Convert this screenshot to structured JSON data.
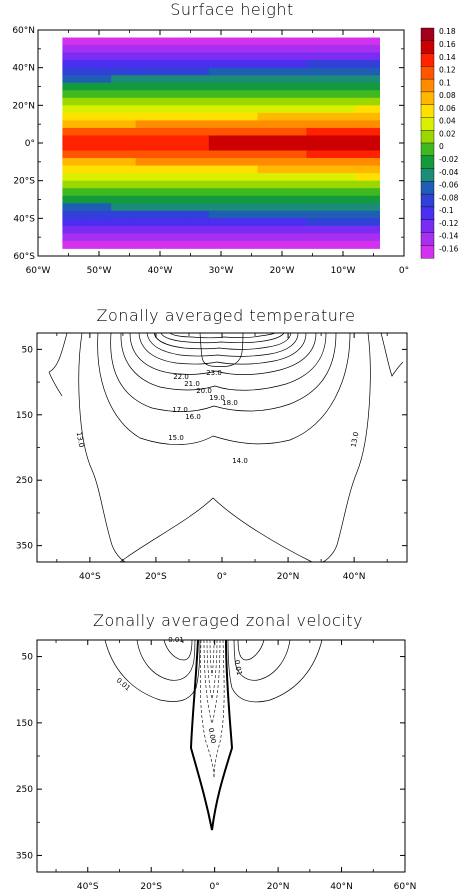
{
  "panels": [
    {
      "title": "Surface height",
      "type": "heatmap",
      "x_ticks": [
        "60°W",
        "50°W",
        "40°W",
        "30°W",
        "20°W",
        "10°W",
        "0°"
      ],
      "y_ticks": [
        "60°N",
        "40°N",
        "20°N",
        "0°",
        "20°S",
        "40°S",
        "60°S"
      ],
      "colorbar": [
        "0.18",
        "0.16",
        "0.14",
        "0.12",
        "0.1",
        "0.08",
        "0.06",
        "0.04",
        "0.02",
        "0",
        "-0.02",
        "-0.04",
        "-0.06",
        "-0.08",
        "-0.1",
        "-0.12",
        "-0.14",
        "-0.16"
      ],
      "colors": [
        "#a0001a",
        "#cc0000",
        "#ff2200",
        "#ff5500",
        "#ff8c00",
        "#ffb700",
        "#ffe000",
        "#d9f000",
        "#9ad800",
        "#40b820",
        "#129a3c",
        "#1a8c78",
        "#1f5eb4",
        "#3141d8",
        "#4a2ff0",
        "#7b2cf2",
        "#a730f0",
        "#d431ee"
      ],
      "xlim": [
        -60,
        0
      ],
      "ylim": [
        -60,
        60
      ],
      "lon_range": [
        -56,
        -4
      ],
      "lat_range": [
        -56,
        56
      ]
    },
    {
      "title": "Zonally averaged temperature",
      "type": "contour",
      "x_ticks": [
        "40°S",
        "20°S",
        "0°",
        "20°N",
        "40°N"
      ],
      "y_ticks": [
        "50",
        "150",
        "250",
        "350"
      ],
      "contour_labels": [
        "23.0",
        "22.0",
        "21.0",
        "20.0",
        "19.0",
        "18.0",
        "17.0",
        "16.0",
        "15.0",
        "14.0",
        "13.0",
        "13.0"
      ],
      "xlim": [
        -56,
        56
      ],
      "ylim": [
        375,
        25
      ]
    },
    {
      "title": "Zonally averaged zonal velocity",
      "type": "contour",
      "x_ticks": [
        "40°S",
        "20°S",
        "0°",
        "20°N",
        "40°N",
        "60°N"
      ],
      "y_ticks": [
        "50",
        "150",
        "250",
        "350"
      ],
      "contour_labels": [
        "0.01",
        "0.01",
        "0.01",
        "0.00"
      ],
      "xlim": [
        -56,
        60
      ],
      "ylim": [
        375,
        25
      ]
    }
  ],
  "chart_data": [
    {
      "type": "heatmap",
      "title": "Surface height",
      "x": [
        -54,
        -50,
        -46,
        -42,
        -38,
        -34,
        -30,
        -26,
        -22,
        -18,
        -14,
        -10,
        -6
      ],
      "y_lat_bands": [
        54,
        50,
        46,
        42,
        38,
        34,
        30,
        26,
        22,
        18,
        14,
        10,
        6,
        2,
        -2,
        -6,
        -10,
        -14,
        -18,
        -22,
        -26,
        -30,
        -34,
        -38,
        -42,
        -46,
        -50,
        -54
      ],
      "colorbar_range": [
        -0.16,
        0.18
      ],
      "xlim": [
        -60,
        0
      ],
      "ylim": [
        -60,
        60
      ]
    },
    {
      "type": "line",
      "title": "Zonally averaged temperature",
      "contour_levels": [
        13,
        14,
        15,
        16,
        17,
        18,
        19,
        20,
        21,
        22,
        23
      ],
      "xlim": [
        -56,
        56
      ],
      "ylim": [
        375,
        25
      ]
    },
    {
      "type": "line",
      "title": "Zonally averaged zonal velocity",
      "contour_levels": [
        0.0,
        0.01
      ],
      "xlim": [
        -56,
        60
      ],
      "ylim": [
        375,
        25
      ]
    }
  ]
}
